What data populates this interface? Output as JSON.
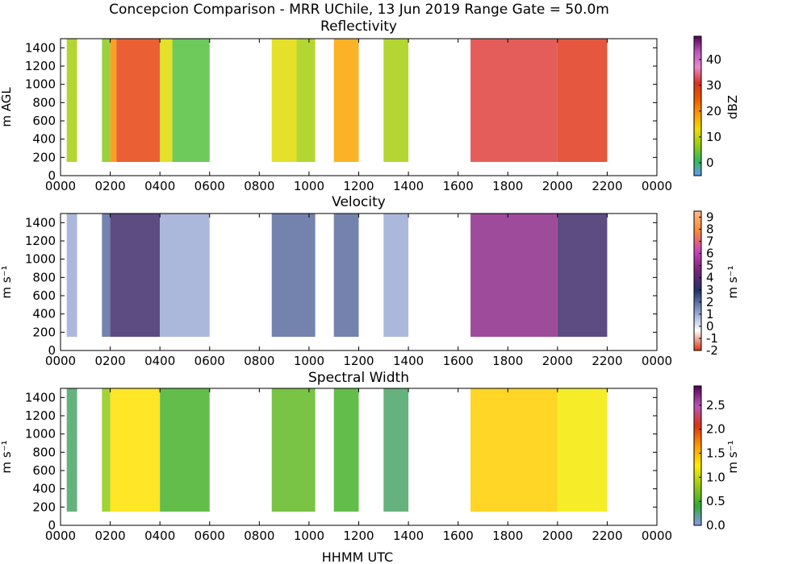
{
  "figure_title": "Concepcion Comparison - MRR UChile, 13 Jun 2019 Range Gate = 50.0m",
  "x_axis_label": "HHMM UTC",
  "chart_data": [
    {
      "type": "heatmap",
      "title": "Reflectivity",
      "ylabel": "m AGL",
      "x_ticks": [
        "0000",
        "0200",
        "0400",
        "0600",
        "0800",
        "1000",
        "1200",
        "1400",
        "1600",
        "1800",
        "2000",
        "2200",
        "0000"
      ],
      "x_range_hours": [
        0,
        24
      ],
      "y_ticks": [
        "0",
        "200",
        "400",
        "600",
        "800",
        "1000",
        "1200",
        "1400"
      ],
      "y_range": [
        0,
        1500
      ],
      "colorbar": {
        "label": "dBZ",
        "range": [
          -5,
          49
        ],
        "ticks": [
          "0",
          "10",
          "20",
          "30",
          "40"
        ],
        "tick_values": [
          0,
          10,
          20,
          30,
          40
        ],
        "colors": [
          "#6699ee",
          "#33bb55",
          "#99cc11",
          "#eedd00",
          "#ff9900",
          "#ee5500",
          "#dd3322",
          "#ee88cc",
          "#bb55bb",
          "#550055"
        ]
      },
      "echo_regions": [
        {
          "start": "0015",
          "end": "0040",
          "value": 8
        },
        {
          "start": "0140",
          "end": "0200",
          "value": 6
        },
        {
          "start": "0200",
          "end": "0215",
          "value": 20
        },
        {
          "start": "0215",
          "end": "0400",
          "value": 28
        },
        {
          "start": "0400",
          "end": "0430",
          "value": 12
        },
        {
          "start": "0430",
          "end": "0600",
          "value": 3
        },
        {
          "start": "0830",
          "end": "0930",
          "value": 12
        },
        {
          "start": "0930",
          "end": "1015",
          "value": 8
        },
        {
          "start": "1100",
          "end": "1200",
          "value": 18
        },
        {
          "start": "1300",
          "end": "1400",
          "value": 8
        },
        {
          "start": "1630",
          "end": "2000",
          "value": 32
        },
        {
          "start": "2000",
          "end": "2200",
          "value": 30
        }
      ]
    },
    {
      "type": "heatmap",
      "title": "Velocity",
      "ylabel": "m s⁻¹",
      "x_ticks": [
        "0000",
        "0200",
        "0400",
        "0600",
        "0800",
        "1000",
        "1200",
        "1400",
        "1600",
        "1800",
        "2000",
        "2200",
        "0000"
      ],
      "x_range_hours": [
        0,
        24
      ],
      "y_ticks": [
        "0",
        "200",
        "400",
        "600",
        "800",
        "1000",
        "1200",
        "1400"
      ],
      "y_range": [
        0,
        1500
      ],
      "colorbar": {
        "label": "m s⁻¹",
        "range": [
          -2,
          9.5
        ],
        "ticks": [
          "-2",
          "-1",
          "0",
          "1",
          "2",
          "3",
          "4",
          "5",
          "6",
          "7",
          "8",
          "9"
        ],
        "tick_values": [
          -2,
          -1,
          0,
          1,
          2,
          3,
          4,
          5,
          6,
          7,
          8,
          9
        ],
        "colors": [
          "#dd3311",
          "#ffffff",
          "#8899cc",
          "#223366",
          "#772277",
          "#cc44bb",
          "#ff8833",
          "#ffbb88"
        ]
      },
      "echo_regions": [
        {
          "start": "0015",
          "end": "0040",
          "value": 1
        },
        {
          "start": "0140",
          "end": "0200",
          "value": 2
        },
        {
          "start": "0200",
          "end": "0400",
          "value": 3.5
        },
        {
          "start": "0400",
          "end": "0600",
          "value": 1
        },
        {
          "start": "0830",
          "end": "1015",
          "value": 2
        },
        {
          "start": "1100",
          "end": "1200",
          "value": 2
        },
        {
          "start": "1300",
          "end": "1400",
          "value": 1
        },
        {
          "start": "1630",
          "end": "2000",
          "value": 5
        },
        {
          "start": "2000",
          "end": "2200",
          "value": 3.5
        }
      ]
    },
    {
      "type": "heatmap",
      "title": "Spectral Width",
      "ylabel": "m s⁻¹",
      "x_ticks": [
        "0000",
        "0200",
        "0400",
        "0600",
        "0800",
        "1000",
        "1200",
        "1400",
        "1600",
        "1800",
        "2000",
        "2200",
        "0000"
      ],
      "x_range_hours": [
        0,
        24
      ],
      "y_ticks": [
        "0",
        "200",
        "400",
        "600",
        "800",
        "1000",
        "1200",
        "1400"
      ],
      "y_range": [
        0,
        1500
      ],
      "colorbar": {
        "label": "m s⁻¹",
        "range": [
          0,
          2.9
        ],
        "ticks": [
          "0.0",
          "0.5",
          "1.0",
          "1.5",
          "2.0",
          "2.5"
        ],
        "tick_values": [
          0,
          0.5,
          1.0,
          1.5,
          2.0,
          2.5
        ],
        "colors": [
          "#8899ee",
          "#33aa33",
          "#99cc11",
          "#ffee00",
          "#ff9900",
          "#dd3311",
          "#bb55bb",
          "#550055"
        ]
      },
      "echo_regions": [
        {
          "start": "0015",
          "end": "0040",
          "value": 0.3
        },
        {
          "start": "0140",
          "end": "0200",
          "value": 0.8
        },
        {
          "start": "0200",
          "end": "0400",
          "value": 1.3
        },
        {
          "start": "0400",
          "end": "0600",
          "value": 0.5
        },
        {
          "start": "0830",
          "end": "1015",
          "value": 0.6
        },
        {
          "start": "1100",
          "end": "1200",
          "value": 0.5
        },
        {
          "start": "1300",
          "end": "1400",
          "value": 0.3
        },
        {
          "start": "1630",
          "end": "2000",
          "value": 1.4
        },
        {
          "start": "2000",
          "end": "2200",
          "value": 1.2
        }
      ]
    }
  ]
}
